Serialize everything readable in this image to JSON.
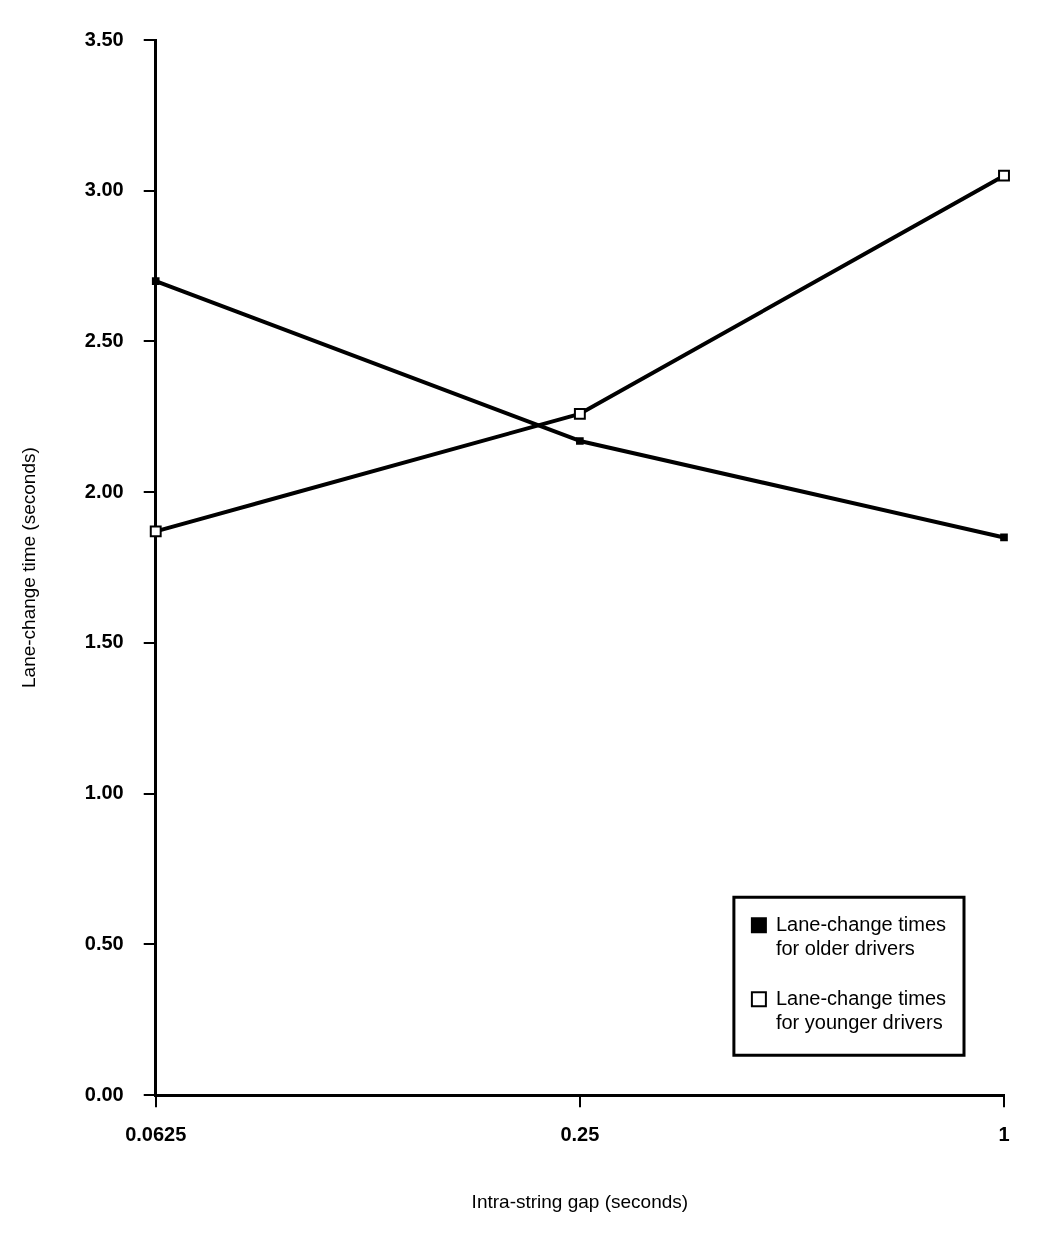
{
  "chart_data": {
    "type": "line",
    "xlabel": "Intra-string gap (seconds)",
    "ylabel": "Lane-change time (seconds)",
    "categories": [
      "0.0625",
      "0.25",
      "1"
    ],
    "series": [
      {
        "name": "Lane-change times for older drivers",
        "color": "#000000",
        "values": [
          2.7,
          2.17,
          1.85
        ]
      },
      {
        "name": "Lane-change times for younger drivers",
        "color": "#000000",
        "values": [
          1.87,
          2.26,
          3.05
        ]
      }
    ],
    "ylim": [
      0,
      3.5
    ],
    "yticks": [
      {
        "value": 0,
        "label": "0.00"
      },
      {
        "value": 0.5,
        "label": "0.50"
      },
      {
        "value": 1,
        "label": "1.00"
      },
      {
        "value": 1.5,
        "label": "1.50"
      },
      {
        "value": 2,
        "label": "2.00"
      },
      {
        "value": 2.5,
        "label": "2.50"
      },
      {
        "value": 3,
        "label": "3.00"
      },
      {
        "value": 3.5,
        "label": "3.50"
      }
    ],
    "grid": false,
    "legend": "bottom right",
    "marker": "square",
    "line_style": "solid"
  }
}
